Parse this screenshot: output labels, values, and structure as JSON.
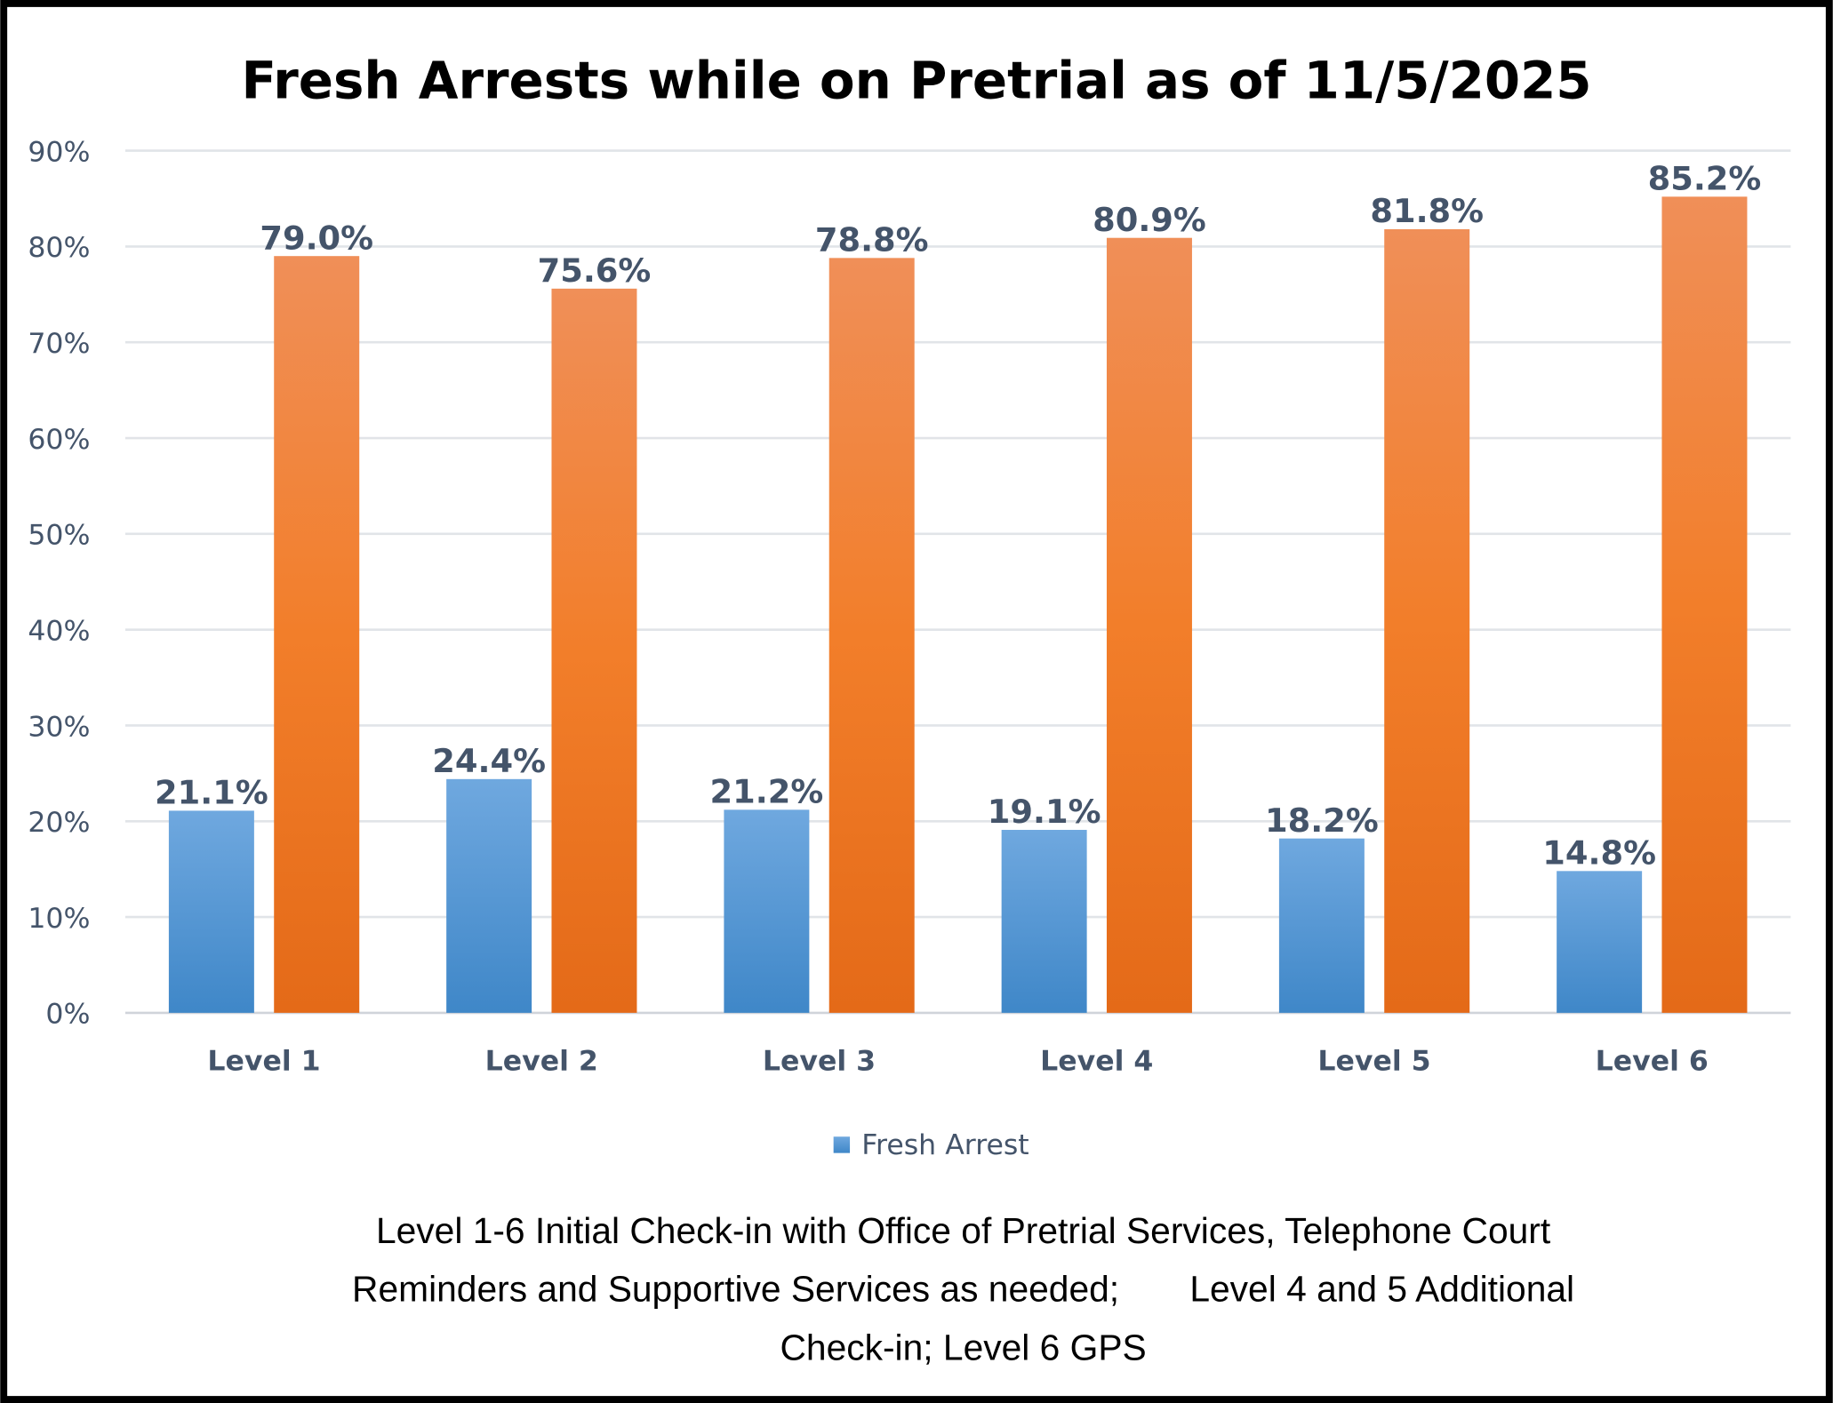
{
  "chart_data": {
    "type": "bar",
    "title": "Fresh Arrests while on Pretrial as of 11/5/2025",
    "categories": [
      "Level 1",
      "Level 2",
      "Level 3",
      "Level 4",
      "Level 5",
      "Level 6"
    ],
    "series": [
      {
        "name": "Fresh Arrest",
        "values": [
          21.1,
          24.4,
          21.2,
          19.1,
          18.2,
          14.8
        ],
        "color": "#5B9BD5"
      },
      {
        "values": [
          79.0,
          75.6,
          78.8,
          80.9,
          81.8,
          85.2
        ],
        "color": "#ED7D31"
      }
    ],
    "data_labels": [
      [
        "21.1%",
        "24.4%",
        "21.2%",
        "19.1%",
        "18.2%",
        "14.8%"
      ],
      [
        "79.0%",
        "75.6%",
        "78.8%",
        "80.9%",
        "81.8%",
        "85.2%"
      ]
    ],
    "yticks": [
      "0%",
      "10%",
      "20%",
      "30%",
      "40%",
      "50%",
      "60%",
      "70%",
      "80%",
      "90%"
    ],
    "ylim": [
      0,
      90
    ],
    "xlabel": "",
    "ylabel": "",
    "grid": true,
    "legend": {
      "placement": "bottom",
      "entries": [
        "Fresh Arrest"
      ]
    },
    "footnote": [
      "Level 1-6 Initial Check-in with Office of Pretrial Services, Telephone Court",
      "Reminders and Supportive Services as needed;       Level 4 and 5 Additional",
      "Check-in; Level 6 GPS"
    ]
  }
}
